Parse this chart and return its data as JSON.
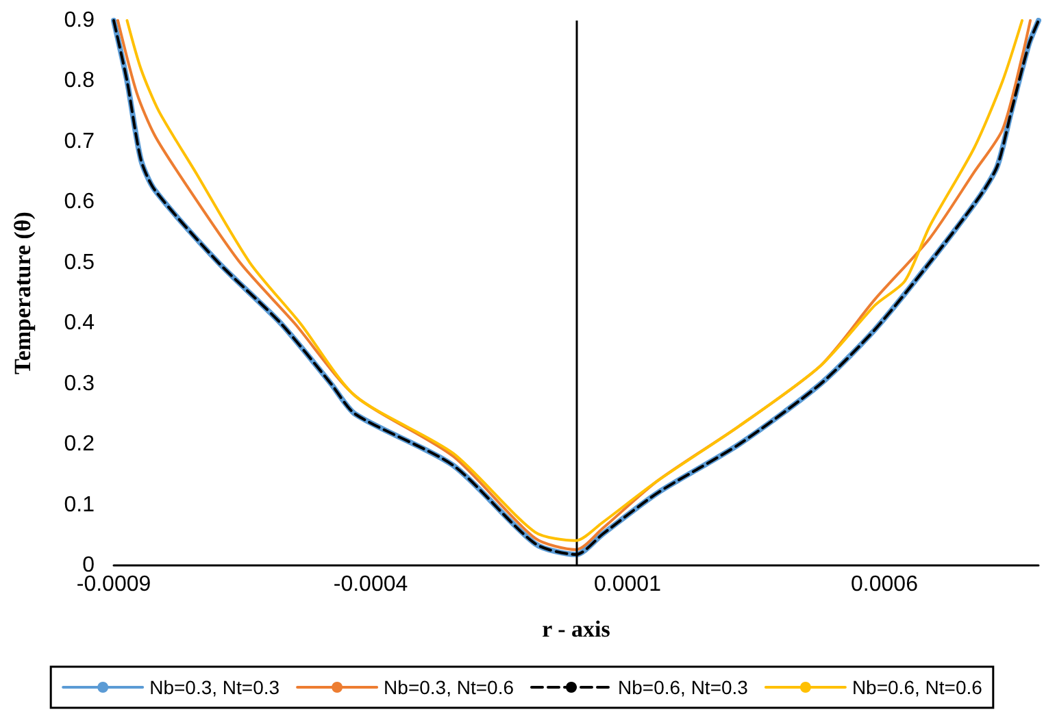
{
  "chart_data": {
    "type": "line",
    "xlabel": "r - axis",
    "ylabel": "Temperature (θ)",
    "xlim": [
      -0.0009,
      0.0009
    ],
    "xticks": [
      -0.0009,
      -0.0004,
      0.0001,
      0.0006
    ],
    "ylim": [
      0,
      0.9
    ],
    "yticks": [
      0,
      0.1,
      0.2,
      0.3,
      0.4,
      0.5,
      0.6,
      0.7,
      0.8,
      0.9
    ],
    "grid": false,
    "legend": "bottom",
    "marker": "none",
    "line_style": "solid",
    "ref_lines": [
      {
        "axis": "x",
        "value": 0,
        "color": "#000000"
      }
    ],
    "series": [
      {
        "name": "Nb=0.3, Nt=0.3",
        "color": "#5b9bd5",
        "x": [
          -0.0009,
          -0.000874,
          -0.000847,
          -0.00082,
          -0.000696,
          -0.000575,
          -0.000477,
          -0.00043,
          -0.000239,
          -8e-05,
          0,
          5.2e-05,
          0.000159,
          0.000317,
          0.000476,
          0.000582,
          0.000688,
          0.000786,
          0.00082,
          0.000847,
          0.000881,
          0.0009
        ],
        "values": [
          0.9,
          0.8,
          0.67,
          0.62,
          0.5,
          0.4,
          0.3,
          0.25,
          0.165,
          0.036,
          0.018,
          0.052,
          0.12,
          0.2,
          0.3,
          0.39,
          0.5,
          0.61,
          0.66,
          0.75,
          0.86,
          0.9
        ]
      },
      {
        "name": "Nb=0.3, Nt=0.6",
        "color": "#ed7d31",
        "x": [
          -0.000892,
          -0.000855,
          -0.00082,
          -0.00076,
          -0.000654,
          -0.000548,
          -0.00043,
          -0.000239,
          -8e-05,
          0,
          5e-05,
          0.000159,
          0.000317,
          0.000476,
          0.000582,
          0.000688,
          0.000775,
          0.00083,
          0.000868,
          0.000884
        ],
        "values": [
          0.9,
          0.78,
          0.71,
          0.63,
          0.5,
          0.4,
          0.28,
          0.18,
          0.045,
          0.026,
          0.06,
          0.14,
          0.23,
          0.33,
          0.44,
          0.54,
          0.65,
          0.72,
          0.84,
          0.9
        ]
      },
      {
        "name": "Nb=0.6, Nt=0.3",
        "color": "#000000",
        "line_style": "dashed",
        "x": [
          -0.0009,
          -0.000874,
          -0.000847,
          -0.00082,
          -0.000696,
          -0.000575,
          -0.000477,
          -0.00043,
          -0.000239,
          -8e-05,
          0,
          5.2e-05,
          0.000159,
          0.000317,
          0.000476,
          0.000582,
          0.000688,
          0.000786,
          0.00082,
          0.000847,
          0.000881,
          0.0009
        ],
        "values": [
          0.9,
          0.8,
          0.67,
          0.62,
          0.5,
          0.4,
          0.3,
          0.25,
          0.165,
          0.036,
          0.018,
          0.052,
          0.12,
          0.2,
          0.3,
          0.39,
          0.5,
          0.61,
          0.66,
          0.75,
          0.86,
          0.9
        ]
      },
      {
        "name": "Nb=0.6, Nt=0.6",
        "color": "#ffc000",
        "x": [
          -0.000874,
          -0.000847,
          -0.000812,
          -0.000741,
          -0.000635,
          -0.000537,
          -0.00043,
          -0.000239,
          -8e-05,
          0,
          5e-05,
          0.000159,
          0.000317,
          0.000476,
          0.000582,
          0.00064,
          0.000688,
          0.000775,
          0.00083,
          0.000868
        ],
        "values": [
          0.9,
          0.82,
          0.75,
          0.65,
          0.5,
          0.4,
          0.28,
          0.185,
          0.055,
          0.041,
          0.07,
          0.14,
          0.23,
          0.33,
          0.43,
          0.47,
          0.56,
          0.69,
          0.8,
          0.9
        ]
      }
    ]
  }
}
